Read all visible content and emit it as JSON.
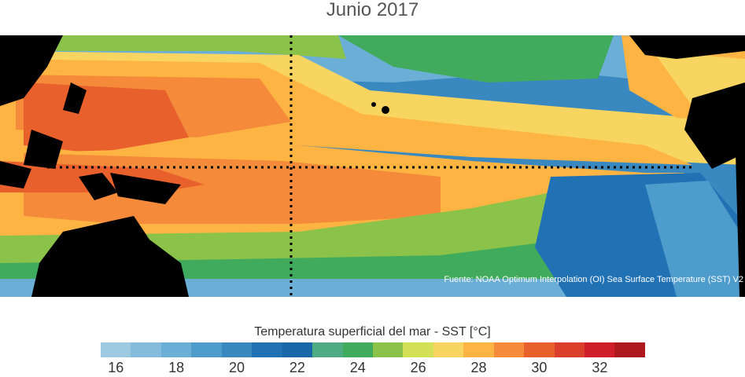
{
  "title": "Junio 2017",
  "source": "Fuente: NOAA Optimum Interpolation (OI) Sea Surface Temperature (SST) V2",
  "colorbar": {
    "label": "Temperatura superficial del mar - SST  [°C]",
    "ticks": [
      "16",
      "18",
      "20",
      "22",
      "24",
      "26",
      "28",
      "30",
      "32"
    ],
    "colors": [
      "#9ecae1",
      "#85bcdc",
      "#6baed6",
      "#4e9ccc",
      "#3a88c0",
      "#2171b5",
      "#1a67a8",
      "#4fab82",
      "#41ab5d",
      "#8bc34a",
      "#d4e157",
      "#f7d560",
      "#fdb443",
      "#f48a3a",
      "#e8602c",
      "#db3e2a",
      "#cf1d29",
      "#b0181f"
    ]
  },
  "palette": {
    "land": "#000000",
    "warm_pool": "#e8602c",
    "equatorial_cold": "#2171b5"
  }
}
